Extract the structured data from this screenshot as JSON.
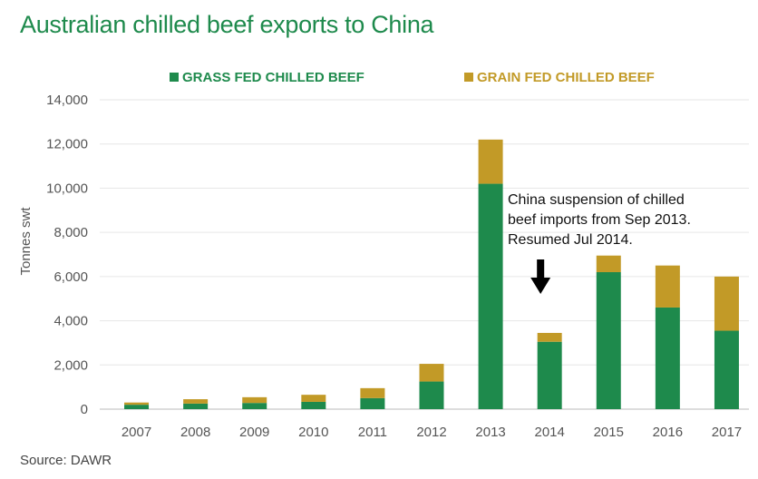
{
  "title": "Australian chilled beef exports to China",
  "source": "Source: DAWR",
  "chart_data": {
    "type": "bar",
    "stacked": true,
    "title": "Australian chilled beef exports to China",
    "xlabel": "",
    "ylabel": "Tonnes swt",
    "ylim": [
      0,
      14000
    ],
    "yticks": [
      0,
      2000,
      4000,
      6000,
      8000,
      10000,
      12000,
      14000
    ],
    "ytick_labels": [
      "0",
      "2,000",
      "4,000",
      "6,000",
      "8,000",
      "10,000",
      "12,000",
      "14,000"
    ],
    "categories": [
      "2007",
      "2008",
      "2009",
      "2010",
      "2011",
      "2012",
      "2013",
      "2014",
      "2015",
      "2016",
      "2017"
    ],
    "grid": true,
    "legend_position": "top",
    "series": [
      {
        "name": "GRASS FED CHILLED BEEF",
        "color": "#1e8a4c",
        "values": [
          200,
          250,
          280,
          330,
          500,
          1250,
          10200,
          3050,
          6200,
          4600,
          3550
        ]
      },
      {
        "name": "GRAIN FED CHILLED BEEF",
        "color": "#c29a27",
        "values": [
          100,
          200,
          260,
          320,
          450,
          800,
          2000,
          400,
          750,
          1900,
          2450
        ]
      }
    ],
    "annotation": {
      "lines": [
        "China suspension of chilled",
        "beef imports from Sep 2013.",
        "Resumed Jul 2014."
      ],
      "arrow_target": "2014"
    }
  }
}
